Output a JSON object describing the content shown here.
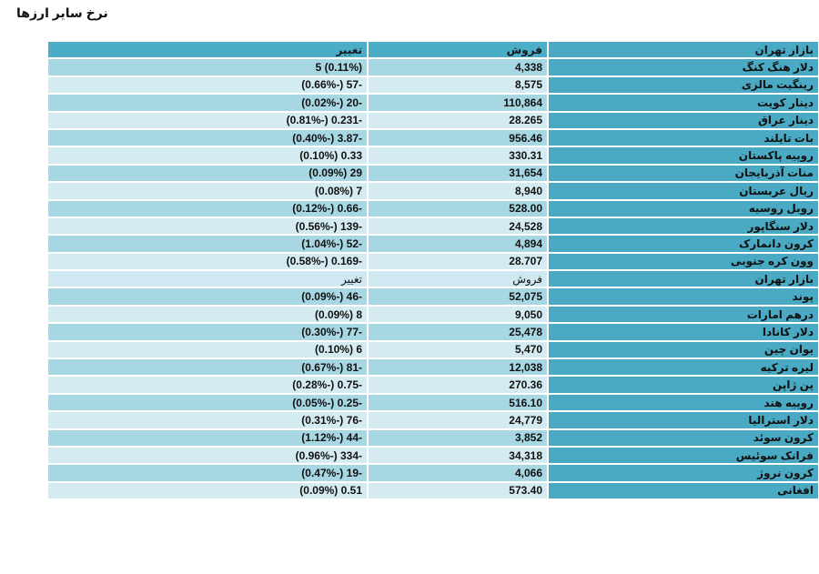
{
  "page_title": "نرخ سایر ارزها",
  "table": {
    "headers": {
      "change": "تغییر",
      "sell": "فروش",
      "market": "بازار تهران"
    },
    "group_1": [
      {
        "name": "دلار هنگ کنگ",
        "sell": "4,338",
        "change": "(0.11%) 5"
      },
      {
        "name": "رینگیت مالزی",
        "sell": "8,575",
        "change": "-57 (-0.66%)"
      },
      {
        "name": "دینار کویت",
        "sell": "110,864",
        "change": "-20 (-0.02%)"
      },
      {
        "name": "دینار عراق",
        "sell": "28.265",
        "change": "-0.231 (-0.81%)"
      },
      {
        "name": "بات تایلند",
        "sell": "956.46",
        "change": "-3.87 (-0.40%)"
      },
      {
        "name": "روپیه پاکستان",
        "sell": "330.31",
        "change": "0.33 (0.10%)"
      },
      {
        "name": "منات آذربایجان",
        "sell": "31,654",
        "change": "29 (0.09%)"
      },
      {
        "name": "ریال عربستان",
        "sell": "8,940",
        "change": "7 (0.08%)"
      },
      {
        "name": "روبل روسیه",
        "sell": "528.00",
        "change": "-0.66 (-0.12%)"
      },
      {
        "name": "دلار سنگاپور",
        "sell": "24,528",
        "change": "-139 (-0.56%)"
      },
      {
        "name": "کرون دانمارک",
        "sell": "4,894",
        "change": "-52 (-1.04%)"
      },
      {
        "name": "وون کره جنوبی",
        "sell": "28.707",
        "change": "-0.169 (-0.58%)"
      }
    ],
    "group_2": [
      {
        "name": "پوند",
        "sell": "52,075",
        "change": "-46 (-0.09%)"
      },
      {
        "name": "درهم امارات",
        "sell": "9,050",
        "change": "8 (0.09%)"
      },
      {
        "name": "دلار کانادا",
        "sell": "25,478",
        "change": "-77 (-0.30%)"
      },
      {
        "name": "یوان چین",
        "sell": "5,470",
        "change": "6 (0.10%)"
      },
      {
        "name": "لیره ترکیه",
        "sell": "12,038",
        "change": "-81 (-0.67%)"
      },
      {
        "name": "ین ژاپن",
        "sell": "270.36",
        "change": "-0.75 (-0.28%)"
      },
      {
        "name": "روپیه هند",
        "sell": "516.10",
        "change": "-0.25 (-0.05%)"
      },
      {
        "name": "دلار استرالیا",
        "sell": "24,779",
        "change": "-76 (-0.31%)"
      },
      {
        "name": "کرون سوئد",
        "sell": "3,852",
        "change": "-44 (-1.12%)"
      },
      {
        "name": "فرانک سوئیس",
        "sell": "34,318",
        "change": "-334 (-0.96%)"
      },
      {
        "name": "کرون نروژ",
        "sell": "4,066",
        "change": "-19 (-0.47%)"
      },
      {
        "name": "افغانی",
        "sell": "573.40",
        "change": "0.51 (0.09%)"
      }
    ]
  }
}
